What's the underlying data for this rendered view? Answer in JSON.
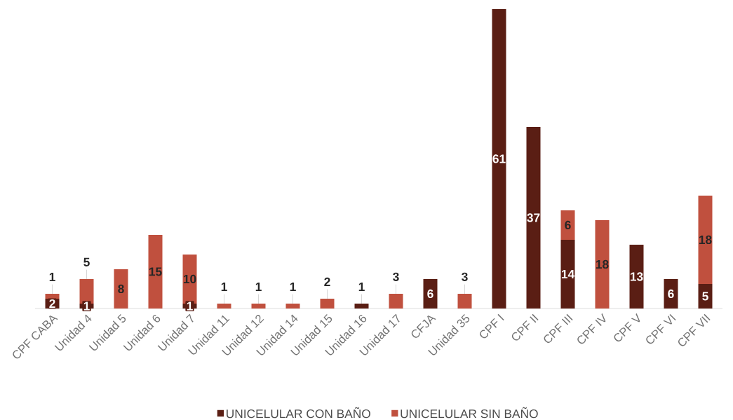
{
  "chart_data": {
    "type": "bar",
    "stacked": true,
    "data_labels": true,
    "legend": "bottom",
    "categories": [
      "CPF CABA",
      "Unidad 4",
      "Unidad 5",
      "Unidad 6",
      "Unidad 7",
      "Unidad 11",
      "Unidad 12",
      "Unidad 14",
      "Unidad 15",
      "Unidad 16",
      "Unidad 17",
      "CFJA",
      "Unidad 35",
      "CPF I",
      "CPF II",
      "CPF III",
      "CPF IV",
      "CPF V",
      "CPF VI",
      "CPF VII"
    ],
    "series": [
      {
        "name": "UNICELULAR CON BAÑO",
        "color": "#5a1e14",
        "values": [
          2,
          1,
          null,
          null,
          1,
          null,
          null,
          null,
          null,
          1,
          null,
          6,
          null,
          61,
          37,
          14,
          null,
          13,
          6,
          5
        ]
      },
      {
        "name": "UNICELULAR SIN BAÑO",
        "color": "#c0503e",
        "values": [
          1,
          5,
          8,
          15,
          10,
          1,
          1,
          1,
          2,
          null,
          3,
          null,
          3,
          null,
          null,
          6,
          18,
          null,
          null,
          18
        ]
      }
    ]
  }
}
